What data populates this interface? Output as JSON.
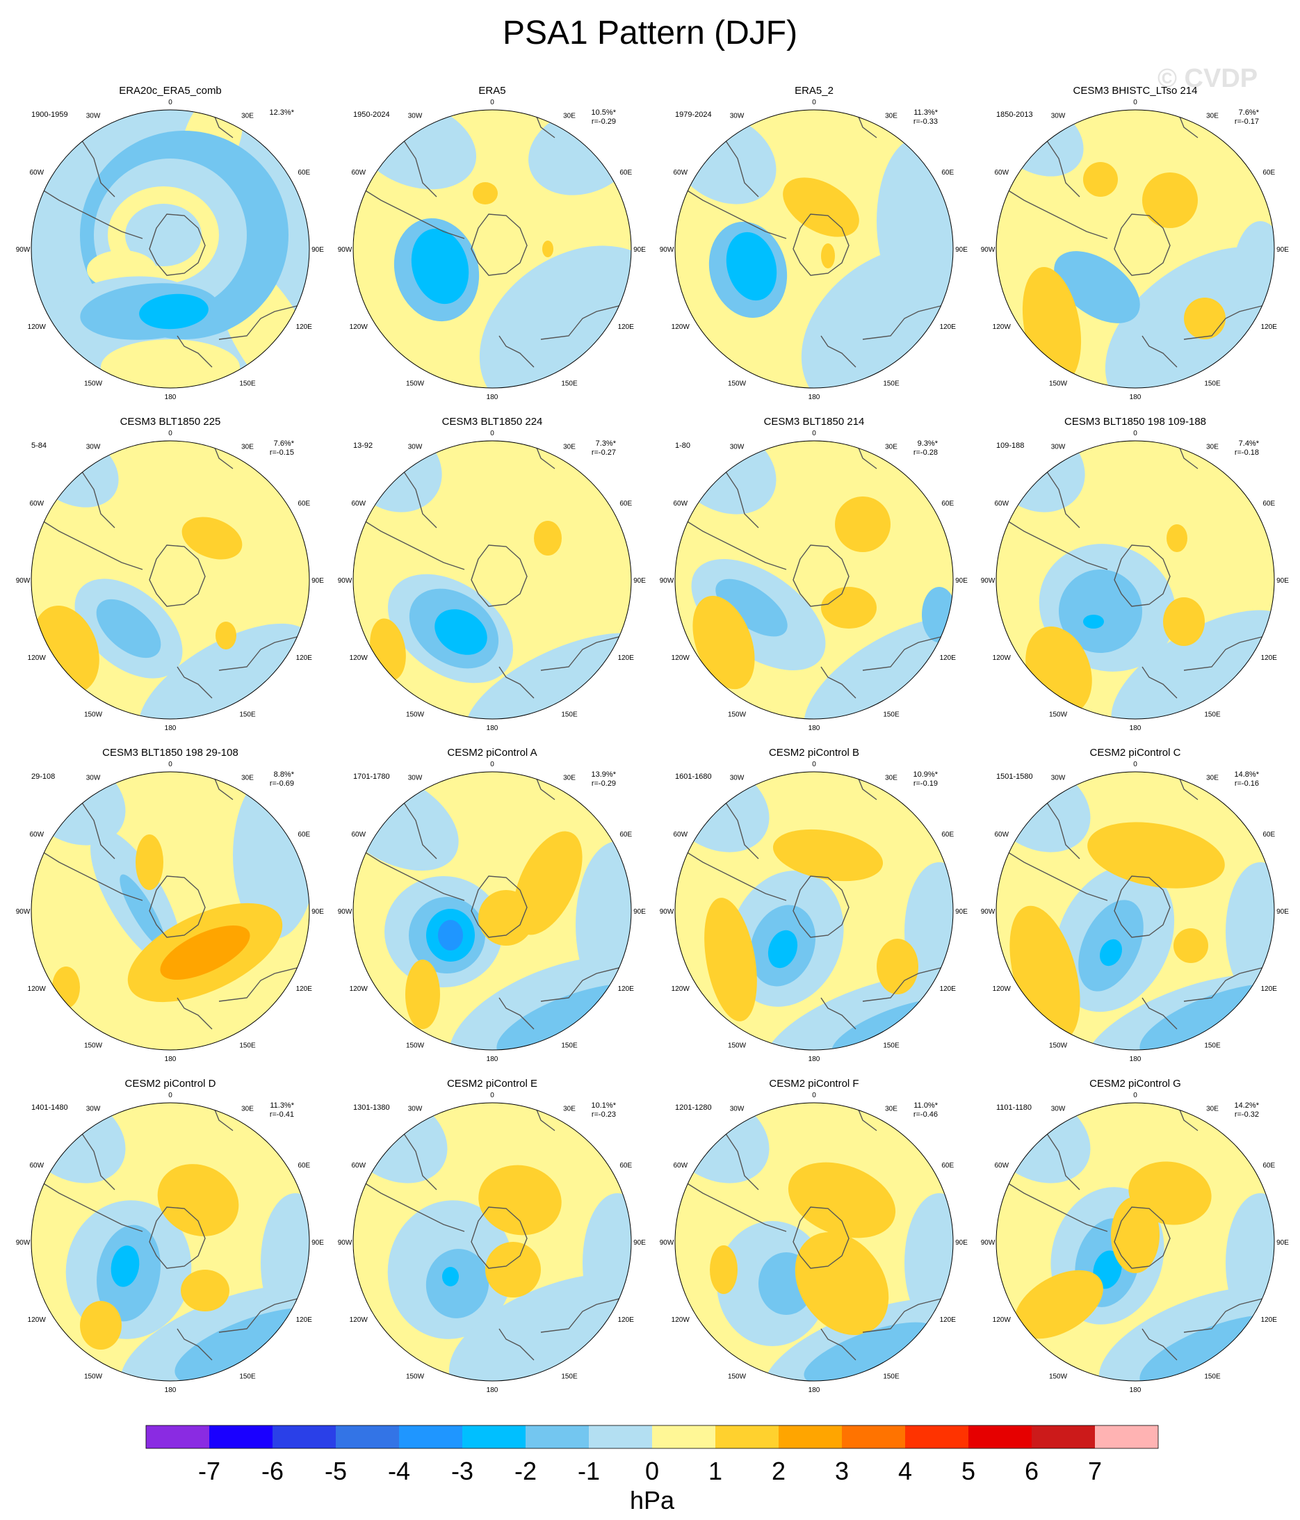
{
  "title": "PSA1 Pattern (DJF)",
  "watermark": "© CVDP",
  "longitude_labels": [
    "0",
    "30E",
    "60E",
    "90E",
    "120E",
    "150E",
    "180",
    "150W",
    "120W",
    "90W",
    "60W",
    "30W"
  ],
  "panels": [
    {
      "title": "ERA20c_ERA5_comb",
      "period": "1900-1959",
      "pct": "12.3%*",
      "r": ""
    },
    {
      "title": "ERA5",
      "period": "1950-2024",
      "pct": "10.5%*",
      "r": "r=-0.29"
    },
    {
      "title": "ERA5_2",
      "period": "1979-2024",
      "pct": "11.3%*",
      "r": "r=-0.33"
    },
    {
      "title": "CESM3 BHISTC_LTso 214",
      "period": "1850-2013",
      "pct": "7.6%*",
      "r": "r=-0.17"
    },
    {
      "title": "CESM3 BLT1850 225",
      "period": "5-84",
      "pct": "7.6%*",
      "r": "r=-0.15"
    },
    {
      "title": "CESM3 BLT1850 224",
      "period": "13-92",
      "pct": "7.3%*",
      "r": "r=-0.27"
    },
    {
      "title": "CESM3 BLT1850 214",
      "period": "1-80",
      "pct": "9.3%*",
      "r": "r=-0.28"
    },
    {
      "title": "CESM3 BLT1850 198 109-188",
      "period": "109-188",
      "pct": "7.4%*",
      "r": "r=-0.18"
    },
    {
      "title": "CESM3 BLT1850 198 29-108",
      "period": "29-108",
      "pct": "8.8%*",
      "r": "r=-0.69"
    },
    {
      "title": "CESM2 piControl A",
      "period": "1701-1780",
      "pct": "13.9%*",
      "r": "r=-0.29"
    },
    {
      "title": "CESM2 piControl B",
      "period": "1601-1680",
      "pct": "10.9%*",
      "r": "r=-0.19"
    },
    {
      "title": "CESM2 piControl C",
      "period": "1501-1580",
      "pct": "14.8%*",
      "r": "r=-0.16"
    },
    {
      "title": "CESM2 piControl D",
      "period": "1401-1480",
      "pct": "11.3%*",
      "r": "r=-0.41"
    },
    {
      "title": "CESM2 piControl E",
      "period": "1301-1380",
      "pct": "10.1%*",
      "r": "r=-0.23"
    },
    {
      "title": "CESM2 piControl F",
      "period": "1201-1280",
      "pct": "11.0%*",
      "r": "r=-0.46"
    },
    {
      "title": "CESM2 piControl G",
      "period": "1101-1180",
      "pct": "14.2%*",
      "r": "r=-0.32"
    }
  ],
  "colorbar": {
    "colors": [
      "#8a2be2",
      "#1a00ff",
      "#2a40e8",
      "#3374e6",
      "#1f96ff",
      "#00bfff",
      "#73c6f0",
      "#b3dff2",
      "#fff796",
      "#ffd12e",
      "#ffa500",
      "#ff7300",
      "#ff3300",
      "#e60000",
      "#cc1a1a",
      "#ffb3b3"
    ],
    "tick_labels": [
      "-7",
      "-6",
      "-5",
      "-4",
      "-3",
      "-2",
      "-1",
      "0",
      "1",
      "2",
      "3",
      "4",
      "5",
      "6",
      "7"
    ],
    "unit": "hPa"
  }
}
